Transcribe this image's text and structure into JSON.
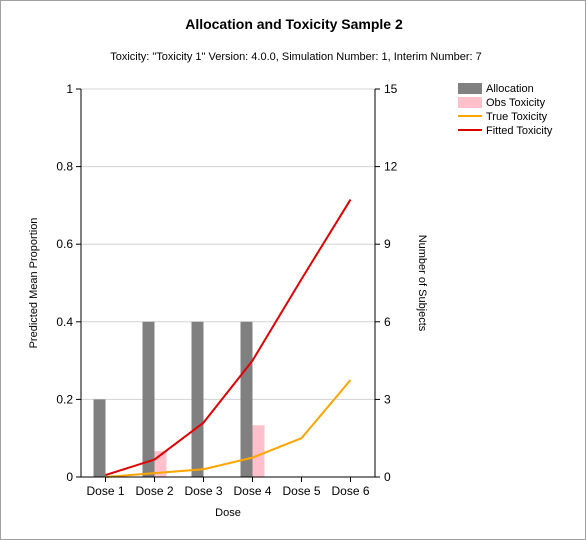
{
  "chart_data": {
    "type": "bar+line",
    "title": "Allocation and Toxicity Sample 2",
    "subtitle": "Toxicity: \"Toxicity 1\" Version: 4.0.0, Simulation Number: 1, Interim Number: 7",
    "xlabel": "Dose",
    "ylabel_left": "Predicted Mean Proportion",
    "ylabel_right": "Number of Subjects",
    "categories": [
      "Dose 1",
      "Dose 2",
      "Dose 3",
      "Dose 4",
      "Dose 5",
      "Dose 6"
    ],
    "ylim_left": [
      0,
      1
    ],
    "yticks_left": [
      "0",
      "0.2",
      "0.4",
      "0.6",
      "0.8",
      "1"
    ],
    "ylim_right": [
      0,
      15
    ],
    "yticks_right": [
      "0",
      "3",
      "6",
      "9",
      "12",
      "15"
    ],
    "grid": true,
    "legend_position": "top-right",
    "series": [
      {
        "name": "Allocation",
        "kind": "bar",
        "axis": "right",
        "color": "#808080",
        "values": [
          3,
          6,
          6,
          6,
          0,
          0
        ]
      },
      {
        "name": "Obs Toxicity",
        "kind": "bar",
        "axis": "right",
        "color": "#ffc0cb",
        "values": [
          0,
          1,
          0,
          2,
          0,
          0
        ]
      },
      {
        "name": "True Toxicity",
        "kind": "line",
        "axis": "left",
        "color": "#ffa500",
        "values": [
          0.0,
          0.01,
          0.02,
          0.05,
          0.1,
          0.25
        ]
      },
      {
        "name": "Fitted Toxicity",
        "kind": "line",
        "axis": "left",
        "color": "#e00000",
        "values": [
          0.005,
          0.045,
          0.14,
          0.3,
          0.51,
          0.715
        ]
      }
    ]
  }
}
